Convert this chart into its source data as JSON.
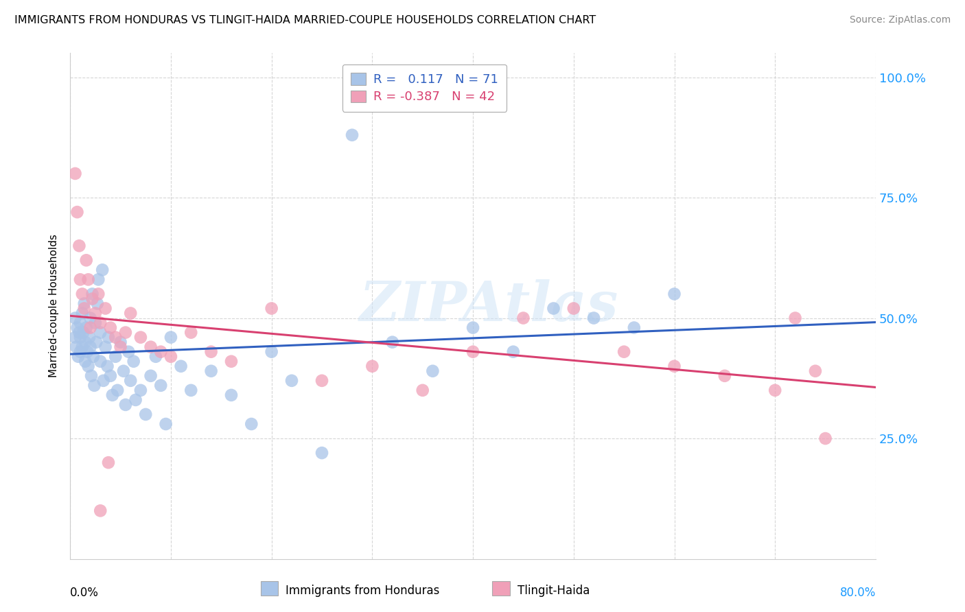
{
  "title": "IMMIGRANTS FROM HONDURAS VS TLINGIT-HAIDA MARRIED-COUPLE HOUSEHOLDS CORRELATION CHART",
  "source": "Source: ZipAtlas.com",
  "ylabel": "Married-couple Households",
  "xlim": [
    0.0,
    0.8
  ],
  "ylim": [
    0.0,
    1.05
  ],
  "blue_color": "#a8c4e8",
  "pink_color": "#f0a0b8",
  "blue_line_color": "#3060c0",
  "pink_line_color": "#d84070",
  "ytick_vals": [
    0.25,
    0.5,
    0.75,
    1.0
  ],
  "ytick_labels": [
    "25.0%",
    "50.0%",
    "75.0%",
    "100.0%"
  ],
  "watermark_text": "ZIPAtlas",
  "legend_line1": "R =   0.117   N = 71",
  "legend_line2": "R = -0.387   N = 42",
  "blue_x": [
    0.005,
    0.005,
    0.006,
    0.007,
    0.008,
    0.009,
    0.01,
    0.01,
    0.01,
    0.012,
    0.012,
    0.013,
    0.014,
    0.015,
    0.015,
    0.016,
    0.017,
    0.018,
    0.019,
    0.02,
    0.02,
    0.021,
    0.022,
    0.023,
    0.024,
    0.025,
    0.026,
    0.027,
    0.028,
    0.03,
    0.03,
    0.032,
    0.033,
    0.035,
    0.037,
    0.038,
    0.04,
    0.042,
    0.045,
    0.047,
    0.05,
    0.053,
    0.055,
    0.058,
    0.06,
    0.063,
    0.065,
    0.07,
    0.075,
    0.08,
    0.085,
    0.09,
    0.095,
    0.1,
    0.11,
    0.12,
    0.14,
    0.16,
    0.18,
    0.2,
    0.22,
    0.25,
    0.28,
    0.32,
    0.36,
    0.4,
    0.44,
    0.48,
    0.52,
    0.56,
    0.6
  ],
  "blue_y": [
    0.46,
    0.5,
    0.44,
    0.48,
    0.42,
    0.47,
    0.43,
    0.49,
    0.46,
    0.51,
    0.44,
    0.47,
    0.53,
    0.41,
    0.45,
    0.48,
    0.43,
    0.4,
    0.46,
    0.44,
    0.5,
    0.38,
    0.55,
    0.42,
    0.36,
    0.49,
    0.45,
    0.53,
    0.58,
    0.47,
    0.41,
    0.6,
    0.37,
    0.44,
    0.4,
    0.46,
    0.38,
    0.34,
    0.42,
    0.35,
    0.45,
    0.39,
    0.32,
    0.43,
    0.37,
    0.41,
    0.33,
    0.35,
    0.3,
    0.38,
    0.42,
    0.36,
    0.28,
    0.46,
    0.4,
    0.35,
    0.39,
    0.34,
    0.28,
    0.43,
    0.37,
    0.22,
    0.88,
    0.45,
    0.39,
    0.48,
    0.43,
    0.52,
    0.5,
    0.48,
    0.55
  ],
  "pink_x": [
    0.005,
    0.007,
    0.009,
    0.01,
    0.012,
    0.014,
    0.016,
    0.018,
    0.02,
    0.022,
    0.025,
    0.028,
    0.03,
    0.035,
    0.04,
    0.045,
    0.05,
    0.055,
    0.06,
    0.07,
    0.08,
    0.09,
    0.1,
    0.12,
    0.14,
    0.16,
    0.2,
    0.25,
    0.3,
    0.35,
    0.4,
    0.45,
    0.5,
    0.55,
    0.6,
    0.65,
    0.7,
    0.72,
    0.74,
    0.75,
    0.03,
    0.038
  ],
  "pink_y": [
    0.8,
    0.72,
    0.65,
    0.58,
    0.55,
    0.52,
    0.62,
    0.58,
    0.48,
    0.54,
    0.51,
    0.55,
    0.49,
    0.52,
    0.48,
    0.46,
    0.44,
    0.47,
    0.51,
    0.46,
    0.44,
    0.43,
    0.42,
    0.47,
    0.43,
    0.41,
    0.52,
    0.37,
    0.4,
    0.35,
    0.43,
    0.5,
    0.52,
    0.43,
    0.4,
    0.38,
    0.35,
    0.5,
    0.39,
    0.25,
    0.1,
    0.2
  ]
}
